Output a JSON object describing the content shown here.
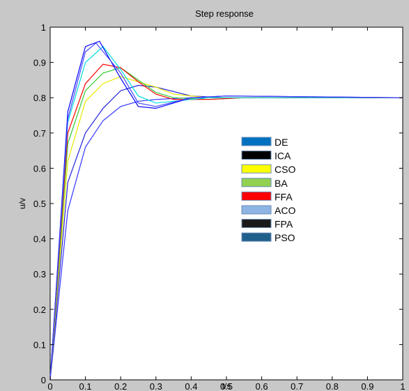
{
  "chart_data": {
    "type": "line",
    "title": "Step response",
    "xlabel": "t/s",
    "ylabel": "u/v",
    "xlim": [
      0,
      1
    ],
    "ylim": [
      0,
      1
    ],
    "xticks": [
      "0",
      "0.1",
      "0.2",
      "0.3",
      "0.4",
      "0.5",
      "0.6",
      "0.7",
      "0.8",
      "0.9",
      "1"
    ],
    "yticks": [
      "0",
      "0.1",
      "0.2",
      "0.3",
      "0.4",
      "0.5",
      "0.6",
      "0.7",
      "0.8",
      "0.9",
      "1"
    ],
    "grid": false,
    "legend_position": "right-center",
    "legend": [
      {
        "name": "DE",
        "color": "#0070c0"
      },
      {
        "name": "ICA",
        "color": "#000000"
      },
      {
        "name": "CSO",
        "color": "#ffff00"
      },
      {
        "name": "BA",
        "color": "#92d050"
      },
      {
        "name": "FFA",
        "color": "#ff0000"
      },
      {
        "name": "ACO",
        "color": "#8db4e2"
      },
      {
        "name": "FPA",
        "color": "#1a1a1a"
      },
      {
        "name": "PSO",
        "color": "#1f5f8b"
      }
    ],
    "series": [
      {
        "color": "#3333ff",
        "x": [
          0,
          0.05,
          0.1,
          0.15,
          0.2,
          0.25,
          0.3,
          0.4,
          0.5,
          1.0
        ],
        "y": [
          0,
          0.48,
          0.66,
          0.735,
          0.775,
          0.79,
          0.795,
          0.8,
          0.8,
          0.8
        ]
      },
      {
        "color": "#2222dd",
        "x": [
          0,
          0.05,
          0.1,
          0.15,
          0.2,
          0.25,
          0.3,
          0.4,
          0.5,
          1.0
        ],
        "y": [
          0,
          0.56,
          0.7,
          0.77,
          0.82,
          0.835,
          0.83,
          0.805,
          0.8,
          0.8
        ]
      },
      {
        "color": "#e8e800",
        "x": [
          0,
          0.05,
          0.1,
          0.15,
          0.2,
          0.25,
          0.3,
          0.35,
          0.45,
          0.55,
          1.0
        ],
        "y": [
          0,
          0.62,
          0.79,
          0.84,
          0.86,
          0.845,
          0.83,
          0.81,
          0.8,
          0.8,
          0.8
        ]
      },
      {
        "color": "#33cc33",
        "x": [
          0,
          0.05,
          0.1,
          0.15,
          0.2,
          0.25,
          0.3,
          0.35,
          0.45,
          0.55,
          1.0
        ],
        "y": [
          0,
          0.67,
          0.82,
          0.87,
          0.885,
          0.85,
          0.815,
          0.8,
          0.795,
          0.8,
          0.8
        ]
      },
      {
        "color": "#ff0000",
        "x": [
          0,
          0.05,
          0.1,
          0.15,
          0.2,
          0.25,
          0.3,
          0.35,
          0.45,
          0.55,
          1.0
        ],
        "y": [
          0,
          0.7,
          0.84,
          0.895,
          0.885,
          0.845,
          0.81,
          0.795,
          0.795,
          0.8,
          0.8
        ]
      },
      {
        "color": "#00dddd",
        "x": [
          0,
          0.05,
          0.1,
          0.15,
          0.2,
          0.25,
          0.3,
          0.35,
          0.45,
          0.55,
          1.0
        ],
        "y": [
          0,
          0.73,
          0.9,
          0.945,
          0.88,
          0.805,
          0.785,
          0.79,
          0.8,
          0.8,
          0.8
        ]
      },
      {
        "color": "#0000ff",
        "x": [
          0,
          0.05,
          0.1,
          0.14,
          0.2,
          0.25,
          0.3,
          0.4,
          0.5,
          1.0
        ],
        "y": [
          0,
          0.76,
          0.945,
          0.96,
          0.855,
          0.775,
          0.77,
          0.8,
          0.805,
          0.8
        ]
      },
      {
        "color": "#4444ff",
        "x": [
          0,
          0.05,
          0.1,
          0.13,
          0.2,
          0.25,
          0.3,
          0.4,
          0.5,
          1.0
        ],
        "y": [
          0,
          0.74,
          0.93,
          0.955,
          0.87,
          0.785,
          0.775,
          0.8,
          0.805,
          0.8
        ]
      }
    ]
  }
}
